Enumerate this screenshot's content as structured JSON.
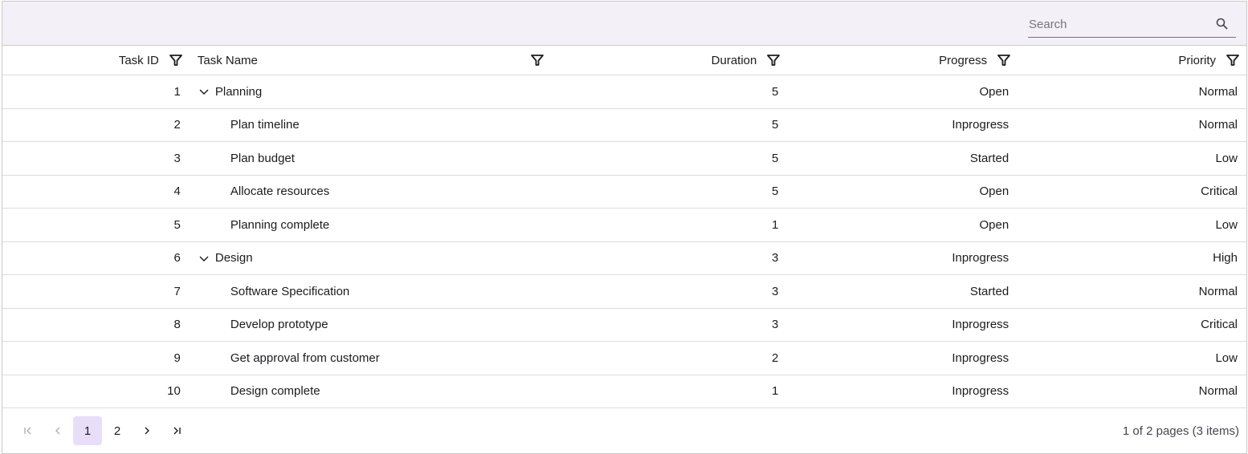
{
  "search": {
    "placeholder": "Search"
  },
  "columns": [
    "Task ID",
    "Task Name",
    "Duration",
    "Progress",
    "Priority"
  ],
  "rows": [
    {
      "id": "1",
      "name": "Planning",
      "duration": "5",
      "progress": "Open",
      "priority": "Normal",
      "parent": true
    },
    {
      "id": "2",
      "name": "Plan timeline",
      "duration": "5",
      "progress": "Inprogress",
      "priority": "Normal"
    },
    {
      "id": "3",
      "name": "Plan budget",
      "duration": "5",
      "progress": "Started",
      "priority": "Low"
    },
    {
      "id": "4",
      "name": "Allocate resources",
      "duration": "5",
      "progress": "Open",
      "priority": "Critical"
    },
    {
      "id": "5",
      "name": "Planning complete",
      "duration": "1",
      "progress": "Open",
      "priority": "Low"
    },
    {
      "id": "6",
      "name": "Design",
      "duration": "3",
      "progress": "Inprogress",
      "priority": "High",
      "parent": true
    },
    {
      "id": "7",
      "name": "Software Specification",
      "duration": "3",
      "progress": "Started",
      "priority": "Normal"
    },
    {
      "id": "8",
      "name": "Develop prototype",
      "duration": "3",
      "progress": "Inprogress",
      "priority": "Critical"
    },
    {
      "id": "9",
      "name": "Get approval from customer",
      "duration": "2",
      "progress": "Inprogress",
      "priority": "Low"
    },
    {
      "id": "10",
      "name": "Design complete",
      "duration": "1",
      "progress": "Inprogress",
      "priority": "Normal"
    }
  ],
  "pager": {
    "pages": [
      "1",
      "2"
    ],
    "current": "1",
    "info": "1 of 2 pages (3 items)"
  },
  "colors": {
    "toolbar_bg": "#f3f0f7",
    "active_page": "#e8defa"
  }
}
